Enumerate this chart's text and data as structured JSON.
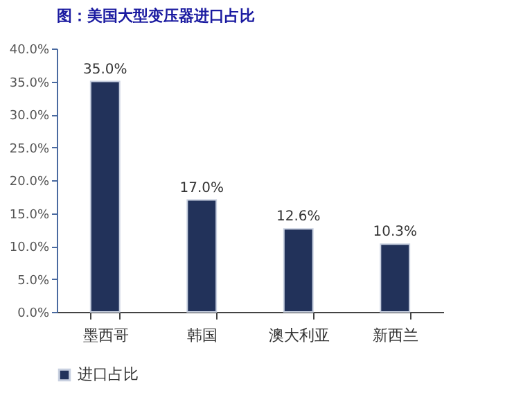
{
  "chart_data": {
    "type": "bar",
    "title": "图：美国大型变压器进口占比",
    "categories": [
      "墨西哥",
      "韩国",
      "澳大利亚",
      "新西兰"
    ],
    "series": [
      {
        "name": "进口占比",
        "color": "#22325a",
        "values": [
          35.0,
          17.0,
          12.6,
          10.3
        ],
        "value_labels": [
          "35.0%",
          "17.0%",
          "12.6%",
          "10.3%"
        ]
      }
    ],
    "ylim": [
      0,
      40
    ],
    "yticks": [
      {
        "value": 0,
        "label": "0.0%"
      },
      {
        "value": 5,
        "label": "5.0%"
      },
      {
        "value": 10,
        "label": "10.0%"
      },
      {
        "value": 15,
        "label": "15.0%"
      },
      {
        "value": 20,
        "label": "20.0%"
      },
      {
        "value": 25,
        "label": "25.0%"
      },
      {
        "value": 30,
        "label": "30.0%"
      },
      {
        "value": 35,
        "label": "35.0%"
      },
      {
        "value": 40,
        "label": "40.0%"
      }
    ],
    "grid": false,
    "legend": "bottom"
  }
}
